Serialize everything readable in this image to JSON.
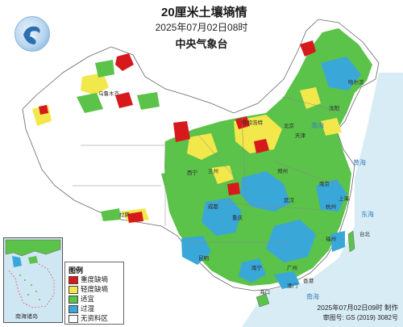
{
  "title": "20厘米土壤墒情",
  "date_time": "2025年07月02日08时",
  "agency": "中央气象台",
  "legend": {
    "title": "图例",
    "items": [
      {
        "label": "重度缺墒",
        "color": "#d7191c"
      },
      {
        "label": "轻度缺墒",
        "color": "#f2e84b"
      },
      {
        "label": "适宜",
        "color": "#5bc24a"
      },
      {
        "label": "过湿",
        "color": "#3aa7d9"
      },
      {
        "label": "无资料区",
        "color": "#ffffff"
      }
    ]
  },
  "footer": {
    "made": "2025年07月02日09时 制作",
    "approval": "审图号: GS (2019) 3082号"
  },
  "inset_label": "南海诸岛",
  "places": {
    "harbin": "哈尔滨",
    "shenyang": "沈阳",
    "beijing": "北京",
    "tianjin": "天津",
    "hohhot": "呼和浩特",
    "lanzhou": "兰州",
    "xining": "西宁",
    "zhengzhou": "郑州",
    "wuhan": "武汉",
    "nanjing": "南京",
    "shanghai": "上海",
    "hangzhou": "杭州",
    "chengdu": "成都",
    "chongqing": "重庆",
    "kunming": "昆明",
    "guangzhou": "广州",
    "nanning": "南宁",
    "fuzhou": "福州",
    "lhasa": "拉萨",
    "urumqi": "乌鲁木齐",
    "hongkong": "香港",
    "macau": "澳门",
    "haikou": "海口",
    "taipei": "台北"
  },
  "seas": {
    "bohai": "渤海",
    "yellow_sea": "黄海",
    "east_sea": "东海",
    "south_sea": "南海"
  },
  "colors": {
    "dry_severe": "#d7191c",
    "dry_light": "#f2e84b",
    "suitable": "#5bc24a",
    "wet": "#3aa7d9",
    "no_data": "#ffffff",
    "sea": "#cfe7f3",
    "border": "#666666"
  }
}
